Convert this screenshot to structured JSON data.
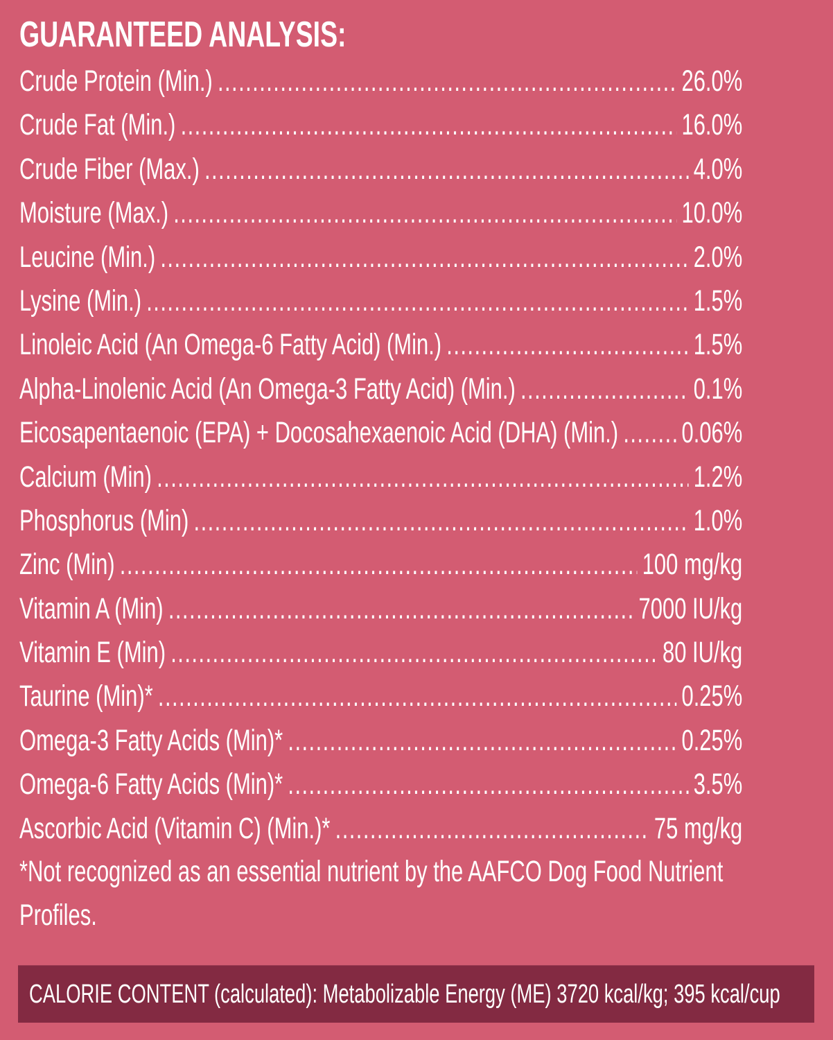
{
  "title": "GUARANTEED ANALYSIS:",
  "rows": [
    {
      "label": "Crude Protein (Min.)",
      "value": "26.0%"
    },
    {
      "label": "Crude Fat (Min.)",
      "value": "16.0%"
    },
    {
      "label": "Crude Fiber (Max.)",
      "value": "4.0%"
    },
    {
      "label": "Moisture (Max.)",
      "value": "10.0%"
    },
    {
      "label": "Leucine (Min.)",
      "value": "2.0%"
    },
    {
      "label": "Lysine (Min.)",
      "value": "1.5%"
    },
    {
      "label": "Linoleic Acid (An Omega-6 Fatty Acid) (Min.)",
      "value": "1.5%"
    },
    {
      "label": "Alpha-Linolenic Acid  (An Omega-3 Fatty Acid) (Min.)",
      "value": "0.1%"
    },
    {
      "label": "Eicosapentaenoic (EPA) + Docosahexaenoic Acid (DHA) (Min.)",
      "value": "0.06%"
    },
    {
      "label": "Calcium (Min)",
      "value": "1.2%"
    },
    {
      "label": "Phosphorus (Min)",
      "value": "1.0%"
    },
    {
      "label": "Zinc (Min)",
      "value": "100 mg/kg"
    },
    {
      "label": "Vitamin A (Min)",
      "value": "7000 IU/kg"
    },
    {
      "label": "Vitamin E (Min)",
      "value": "80 IU/kg"
    },
    {
      "label": "Taurine (Min)*",
      "value": "0.25%"
    },
    {
      "label": "Omega-3 Fatty Acids (Min)*",
      "value": "0.25%"
    },
    {
      "label": "Omega-6 Fatty Acids (Min)*",
      "value": "3.5%"
    },
    {
      "label": "Ascorbic Acid (Vitamin C) (Min.)*",
      "value": "75 mg/kg"
    }
  ],
  "footnote": "*Not recognized as an essential nutrient by the AAFCO Dog Food Nutrient Profiles.",
  "calorie_content": "CALORIE CONTENT (calculated): Metabolizable Energy (ME) 3720 kcal/kg;  395 kcal/cup",
  "colors": {
    "background": "#d35c72",
    "bar": "#832a42",
    "text": "#ffffff"
  }
}
